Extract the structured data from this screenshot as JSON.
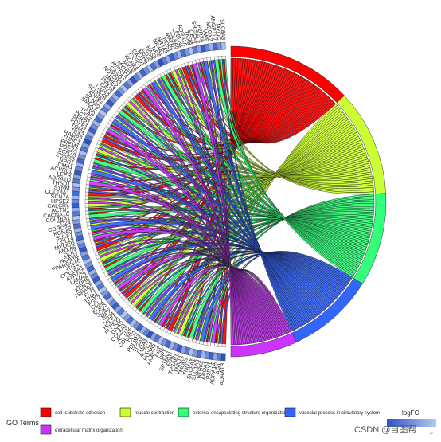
{
  "chart_data": {
    "type": "chord",
    "genes": [
      "ADRA1B",
      "AGT",
      "ADRA1A",
      "P2RY1",
      "APOA1",
      "NTRK2",
      "SLC1A3",
      "SLC8A1",
      "TNNT2",
      "TMOD1",
      "TNNT1",
      "TPSAB1",
      "FBN1",
      "SPTBN1",
      "DPT",
      "FN1",
      "AKAP12",
      "HOXA5",
      "ACTC1",
      "ITGA3",
      "ITGA8",
      "PDLIM3",
      "DCN",
      "COL3A1",
      "ACTN2",
      "COL4A1",
      "GNAS",
      "FLT3LG",
      "HCLS1",
      "CD34",
      "MPX",
      "SOX2",
      "EGFR",
      "CCL2",
      "FGF2",
      "TRIB1",
      "FLT1",
      "TSPAN2",
      "KCNJ8",
      "CDH5",
      "LAMA2",
      "ATP2A2",
      "COL15A1",
      "ITGA7",
      "PPARGC1A",
      "NCAM1",
      "DLK1",
      "ANXA6",
      "MYOCD",
      "CCL19",
      "SULF1",
      "KCNA5",
      "CORO2B",
      "CD24",
      "COL16A1",
      "CACNA1C",
      "ACTN1",
      "CALCRL",
      "HPSE2",
      "SCN7A",
      "COL18A1",
      "SYNM",
      "THSD1",
      "ADRA1D",
      "LEPR",
      "ACVRL1",
      "CMA1",
      "NPR1",
      "EDNRB",
      "SCN7A",
      "PDE2A",
      "FREM1",
      "TNNC1",
      "RAMP2",
      "TBX2",
      "TGM1",
      "FOXF1",
      "SFRP1",
      "ACTA2",
      "TCAP",
      "TEK",
      "SMOC2",
      "SCN5A",
      "ADRB2",
      "SCNN1B",
      "LIMS2",
      "CAV3",
      "TNNT3",
      "MMP2",
      "NOTCH3",
      "CASQ2",
      "AVPR1A",
      "MYH11",
      "MYLK",
      "KCNK3",
      "FXYD1",
      "CASQ1",
      "MYH6",
      "CD36",
      "HAS2",
      "NES",
      "NR4A1",
      "NR4A3",
      "NOS1",
      "MATN2",
      "COL6A6",
      "FBLN1",
      "ADRA1A",
      "TNXB",
      "CES1",
      "SHISAL2",
      "P2RX6",
      "VWF",
      "MEOX2",
      "ANGPTL7",
      "MYOC",
      "SLC8A3"
    ],
    "go_terms": [
      {
        "name": "cell−substrate adhesion",
        "color": "#ff0000"
      },
      {
        "name": "muscle contraction",
        "color": "#ccff33"
      },
      {
        "name": "external encapsulating structure organization",
        "color": "#33ff7a"
      },
      {
        "name": "vascular process in circulatory system",
        "color": "#3366ff"
      },
      {
        "name": "extracellular matrix organization",
        "color": "#cc33ff"
      }
    ],
    "logfc_range": [
      -3,
      -2
    ],
    "legend_title": "GO Terms",
    "logfc_title": "logFC"
  },
  "watermark": "CSDN @自图帮"
}
